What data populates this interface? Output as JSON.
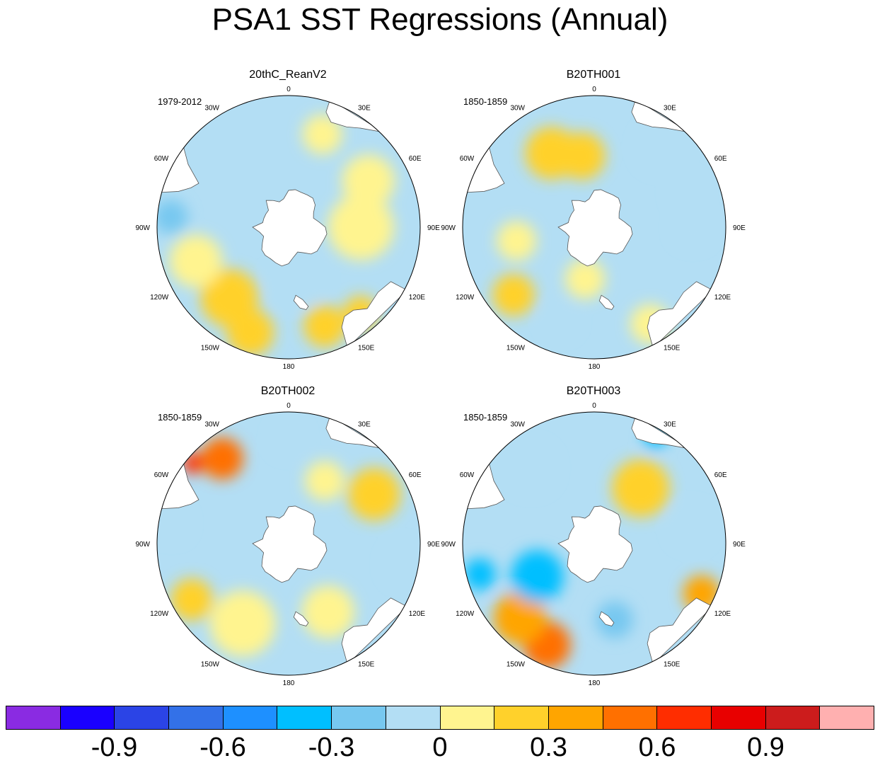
{
  "figure": {
    "title": "PSA1 SST Regressions (Annual)"
  },
  "chart_data": [
    {
      "type": "heatmap",
      "projection": "south-polar-stereographic",
      "title": "20thC_ReanV2",
      "period": "1979-2012",
      "lon_labels": [
        "0",
        "30E",
        "60E",
        "90E",
        "120E",
        "150E",
        "180",
        "150W",
        "120W",
        "90W",
        "60W",
        "30W"
      ],
      "blobs": [
        {
          "lon": 140,
          "r": 0.85,
          "rad": 0.13,
          "value": 0.2
        },
        {
          "lon": 160,
          "r": 0.8,
          "rad": 0.16,
          "value": 0.15
        },
        {
          "lon": -160,
          "r": 0.85,
          "rad": 0.18,
          "value": 0.25
        },
        {
          "lon": -140,
          "r": 0.7,
          "rad": 0.22,
          "value": 0.2
        },
        {
          "lon": -110,
          "r": 0.75,
          "rad": 0.2,
          "value": 0.12
        },
        {
          "lon": -85,
          "r": 0.9,
          "rad": 0.13,
          "value": -0.2
        },
        {
          "lon": 90,
          "r": 0.55,
          "rad": 0.25,
          "value": 0.12
        },
        {
          "lon": 60,
          "r": 0.7,
          "rad": 0.2,
          "value": 0.1
        },
        {
          "lon": 20,
          "r": 0.75,
          "rad": 0.15,
          "value": 0.1
        },
        {
          "lon": 170,
          "r": 0.4,
          "rad": 0.2,
          "value": -0.08
        }
      ]
    },
    {
      "type": "heatmap",
      "projection": "south-polar-stereographic",
      "title": "B20TH001",
      "period": "1850-1859",
      "lon_labels": [
        "0",
        "30E",
        "60E",
        "90E",
        "120E",
        "150E",
        "180",
        "150W",
        "120W",
        "90W",
        "60W",
        "30W"
      ],
      "blobs": [
        {
          "lon": -30,
          "r": 0.65,
          "rad": 0.2,
          "value": 0.2
        },
        {
          "lon": -10,
          "r": 0.55,
          "rad": 0.18,
          "value": 0.18
        },
        {
          "lon": 40,
          "r": 0.8,
          "rad": 0.18,
          "value": -0.15
        },
        {
          "lon": 90,
          "r": 0.75,
          "rad": 0.14,
          "value": -0.15
        },
        {
          "lon": 70,
          "r": 0.75,
          "rad": 0.12,
          "value": -0.12
        },
        {
          "lon": -130,
          "r": 0.8,
          "rad": 0.16,
          "value": 0.15
        },
        {
          "lon": -100,
          "r": 0.6,
          "rad": 0.15,
          "value": 0.1
        },
        {
          "lon": 150,
          "r": 0.85,
          "rad": 0.15,
          "value": 0.12
        },
        {
          "lon": -170,
          "r": 0.4,
          "rad": 0.15,
          "value": 0.1
        },
        {
          "lon": -160,
          "r": 0.75,
          "rad": 0.12,
          "value": -0.12
        }
      ]
    },
    {
      "type": "heatmap",
      "projection": "south-polar-stereographic",
      "title": "B20TH002",
      "period": "1850-1859",
      "lon_labels": [
        "0",
        "30E",
        "60E",
        "90E",
        "120E",
        "150E",
        "180",
        "150W",
        "120W",
        "90W",
        "60W",
        "30W"
      ],
      "blobs": [
        {
          "lon": -38,
          "r": 0.82,
          "rad": 0.16,
          "value": 0.5
        },
        {
          "lon": -50,
          "r": 0.95,
          "rad": 0.08,
          "value": 0.6
        },
        {
          "lon": 60,
          "r": 0.75,
          "rad": 0.2,
          "value": 0.25
        },
        {
          "lon": 30,
          "r": 0.55,
          "rad": 0.15,
          "value": 0.12
        },
        {
          "lon": -120,
          "r": 0.85,
          "rad": 0.16,
          "value": 0.2
        },
        {
          "lon": -150,
          "r": 0.7,
          "rad": 0.25,
          "value": 0.12
        },
        {
          "lon": 150,
          "r": 0.6,
          "rad": 0.2,
          "value": 0.1
        },
        {
          "lon": 100,
          "r": 0.9,
          "rad": 0.15,
          "value": -0.1
        },
        {
          "lon": 0,
          "r": 0.8,
          "rad": 0.12,
          "value": -0.15
        },
        {
          "lon": -80,
          "r": 0.9,
          "rad": 0.12,
          "value": -0.15
        }
      ]
    },
    {
      "type": "heatmap",
      "projection": "south-polar-stereographic",
      "title": "B20TH003",
      "period": "1850-1859",
      "lon_labels": [
        "0",
        "30E",
        "60E",
        "90E",
        "120E",
        "150E",
        "180",
        "150W",
        "120W",
        "90W",
        "60W",
        "30W"
      ],
      "blobs": [
        {
          "lon": -155,
          "r": 0.85,
          "rad": 0.18,
          "value": 0.45
        },
        {
          "lon": -135,
          "r": 0.8,
          "rad": 0.2,
          "value": 0.35
        },
        {
          "lon": -105,
          "r": 0.9,
          "rad": 0.12,
          "value": -0.45
        },
        {
          "lon": -120,
          "r": 0.5,
          "rad": 0.2,
          "value": -0.35
        },
        {
          "lon": 115,
          "r": 0.9,
          "rad": 0.14,
          "value": 0.4
        },
        {
          "lon": 30,
          "r": 0.92,
          "rad": 0.08,
          "value": -0.45
        },
        {
          "lon": 40,
          "r": 0.55,
          "rad": 0.22,
          "value": 0.15
        },
        {
          "lon": 165,
          "r": 0.6,
          "rad": 0.14,
          "value": -0.25
        },
        {
          "lon": 80,
          "r": 0.75,
          "rad": 0.15,
          "value": -0.12
        },
        {
          "lon": -40,
          "r": 0.75,
          "rad": 0.18,
          "value": -0.15
        }
      ]
    }
  ],
  "colorbar": {
    "colors": [
      "#8a2be2",
      "#1a00ff",
      "#2b44e6",
      "#3371e8",
      "#1e90ff",
      "#00bfff",
      "#77c8f0",
      "#b3def4",
      "#fff48f",
      "#ffd12b",
      "#ffa500",
      "#ff7000",
      "#ff2d00",
      "#e80000",
      "#cc1c1c",
      "#ffb0b0"
    ],
    "bounds": [
      -1.05,
      -0.9,
      -0.75,
      -0.6,
      -0.45,
      -0.3,
      -0.15,
      0,
      0.15,
      0.3,
      0.45,
      0.6,
      0.75,
      0.9,
      1.05
    ],
    "labels": [
      "-0.9",
      "-0.6",
      "-0.3",
      "0",
      "0.3",
      "0.6",
      "0.9"
    ]
  }
}
